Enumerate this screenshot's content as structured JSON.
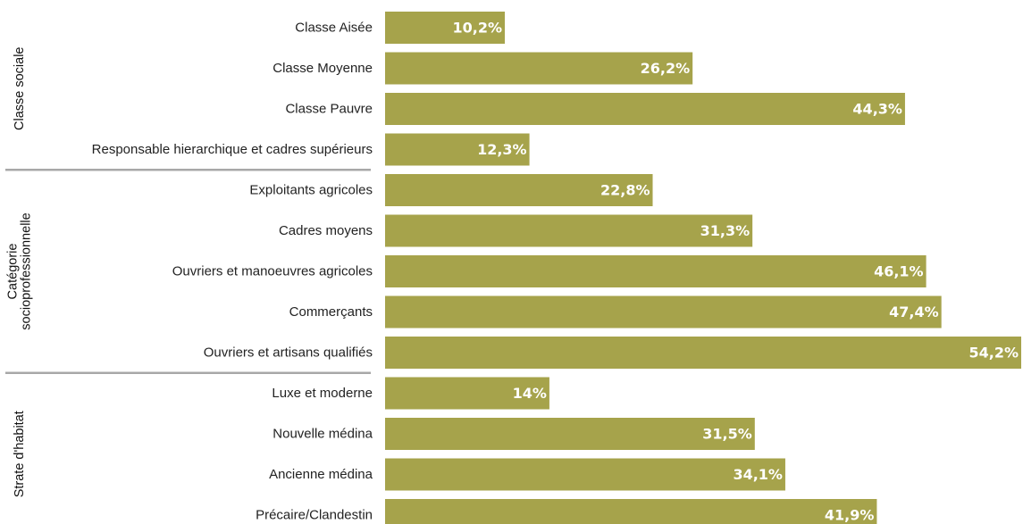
{
  "chart_data": {
    "type": "bar",
    "orientation": "horizontal",
    "bar_color": "#a6a34b",
    "value_label_color": "#ffffff",
    "value_suffix": "%",
    "decimal_separator": ",",
    "xlim": [
      0,
      54.2
    ],
    "groups": [
      {
        "name_lines": [
          "Classe sociale"
        ],
        "items": [
          {
            "label": "Classe Aisée",
            "value": 10.2,
            "display": "10,2%"
          },
          {
            "label": "Classe Moyenne",
            "value": 26.2,
            "display": "26,2%"
          },
          {
            "label": "Classe Pauvre",
            "value": 44.3,
            "display": "44,3%"
          },
          {
            "label": "Responsable hierarchique et cadres supérieurs",
            "value": 12.3,
            "display": "12,3%"
          }
        ]
      },
      {
        "name_lines": [
          "Catégorie",
          "socioprofessionnelle"
        ],
        "items": [
          {
            "label": "Exploitants agricoles",
            "value": 22.8,
            "display": "22,8%"
          },
          {
            "label": "Cadres moyens",
            "value": 31.3,
            "display": "31,3%"
          },
          {
            "label": "Ouvriers et manoeuvres agricoles",
            "value": 46.1,
            "display": "46,1%"
          },
          {
            "label": "Commerçants",
            "value": 47.4,
            "display": "47,4%"
          },
          {
            "label": "Ouvriers et artisans qualifiés",
            "value": 54.2,
            "display": "54,2%"
          }
        ]
      },
      {
        "name_lines": [
          "Strate d'habitat"
        ],
        "items": [
          {
            "label": "Luxe et moderne",
            "value": 14,
            "display": "14%"
          },
          {
            "label": "Nouvelle médina",
            "value": 31.5,
            "display": "31,5%"
          },
          {
            "label": "Ancienne médina",
            "value": 34.1,
            "display": "34,1%"
          },
          {
            "label": "Précaire/Clandestin",
            "value": 41.9,
            "display": "41,9%"
          }
        ]
      }
    ]
  }
}
